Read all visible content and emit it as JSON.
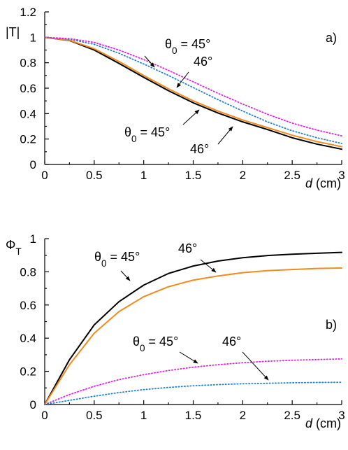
{
  "chart_data": [
    {
      "type": "line",
      "panel_label": "a)",
      "xlabel": "d (cm)",
      "ylabel": "|T|",
      "xlim": [
        0,
        3
      ],
      "ylim": [
        0,
        1.2
      ],
      "xticks": [
        "0",
        "0.5",
        "1",
        "1.5",
        "2",
        "2.5",
        "3"
      ],
      "yticks": [
        "0",
        "0.2",
        "0.4",
        "0.6",
        "0.8",
        "1",
        "1.2"
      ],
      "grid": false,
      "series": [
        {
          "style": "solid",
          "color": "#000000",
          "x": [
            0,
            0.25,
            0.5,
            0.75,
            1.0,
            1.25,
            1.5,
            1.75,
            2.0,
            2.25,
            2.5,
            2.75,
            3.0
          ],
          "y": [
            1.0,
            0.975,
            0.9,
            0.795,
            0.685,
            0.58,
            0.485,
            0.405,
            0.335,
            0.275,
            0.21,
            0.16,
            0.12
          ]
        },
        {
          "style": "solid",
          "color": "#f28a1e",
          "x": [
            0,
            0.25,
            0.5,
            0.75,
            1.0,
            1.25,
            1.5,
            1.75,
            2.0,
            2.25,
            2.5,
            2.75,
            3.0
          ],
          "y": [
            1.0,
            0.977,
            0.91,
            0.81,
            0.7,
            0.595,
            0.5,
            0.42,
            0.35,
            0.29,
            0.23,
            0.18,
            0.14
          ]
        },
        {
          "style": "dotted",
          "color": "#1f7fd8",
          "x": [
            0,
            0.25,
            0.5,
            0.75,
            1.0,
            1.25,
            1.5,
            1.75,
            2.0,
            2.25,
            2.5,
            2.75,
            3.0
          ],
          "y": [
            1.0,
            0.985,
            0.945,
            0.875,
            0.79,
            0.7,
            0.605,
            0.51,
            0.42,
            0.335,
            0.265,
            0.21,
            0.165
          ]
        },
        {
          "style": "dotted",
          "color": "#e020e0",
          "x": [
            0,
            0.25,
            0.5,
            0.75,
            1.0,
            1.25,
            1.5,
            1.75,
            2.0,
            2.25,
            2.5,
            2.75,
            3.0
          ],
          "y": [
            1.0,
            0.99,
            0.96,
            0.9,
            0.825,
            0.74,
            0.65,
            0.56,
            0.475,
            0.395,
            0.325,
            0.27,
            0.225
          ]
        }
      ],
      "annotations": [
        {
          "text": "θ0 = 45°",
          "series": 3
        },
        {
          "text": "46°",
          "series": 2
        },
        {
          "text": "θ0 = 45°",
          "series": 0
        },
        {
          "text": "46°",
          "series": 1
        }
      ]
    },
    {
      "type": "line",
      "panel_label": "b)",
      "xlabel": "d (cm)",
      "ylabel": "ΦT",
      "xlim": [
        0,
        3
      ],
      "ylim": [
        0,
        1
      ],
      "xticks": [
        "0",
        "0.5",
        "1",
        "1.5",
        "2",
        "2.5",
        "3"
      ],
      "yticks": [
        "0",
        "0.2",
        "0.4",
        "0.6",
        "0.8",
        "1"
      ],
      "grid": false,
      "series": [
        {
          "style": "solid",
          "color": "#000000",
          "x": [
            0,
            0.25,
            0.5,
            0.75,
            1.0,
            1.25,
            1.5,
            1.75,
            2.0,
            2.25,
            2.5,
            2.75,
            3.0
          ],
          "y": [
            0,
            0.27,
            0.48,
            0.62,
            0.72,
            0.79,
            0.835,
            0.865,
            0.885,
            0.898,
            0.906,
            0.912,
            0.917
          ]
        },
        {
          "style": "solid",
          "color": "#f28a1e",
          "x": [
            0,
            0.25,
            0.5,
            0.75,
            1.0,
            1.25,
            1.5,
            1.75,
            2.0,
            2.25,
            2.5,
            2.75,
            3.0
          ],
          "y": [
            0,
            0.24,
            0.43,
            0.56,
            0.65,
            0.71,
            0.75,
            0.775,
            0.795,
            0.807,
            0.814,
            0.82,
            0.823
          ]
        },
        {
          "style": "dotted",
          "color": "#e020e0",
          "x": [
            0,
            0.25,
            0.5,
            0.75,
            1.0,
            1.25,
            1.5,
            1.75,
            2.0,
            2.25,
            2.5,
            2.75,
            3.0
          ],
          "y": [
            0,
            0.06,
            0.11,
            0.15,
            0.18,
            0.205,
            0.225,
            0.24,
            0.252,
            0.261,
            0.267,
            0.271,
            0.275
          ]
        },
        {
          "style": "dotted",
          "color": "#1f7fd8",
          "x": [
            0,
            0.25,
            0.5,
            0.75,
            1.0,
            1.25,
            1.5,
            1.75,
            2.0,
            2.25,
            2.5,
            2.75,
            3.0
          ],
          "y": [
            0,
            0.025,
            0.05,
            0.072,
            0.09,
            0.103,
            0.113,
            0.12,
            0.125,
            0.128,
            0.131,
            0.133,
            0.134
          ]
        }
      ],
      "annotations": [
        {
          "text": "θ0 = 45°",
          "series": 0
        },
        {
          "text": "46°",
          "series": 1
        },
        {
          "text": "θ0 = 45°",
          "series": 2
        },
        {
          "text": "46°",
          "series": 3
        }
      ]
    }
  ]
}
